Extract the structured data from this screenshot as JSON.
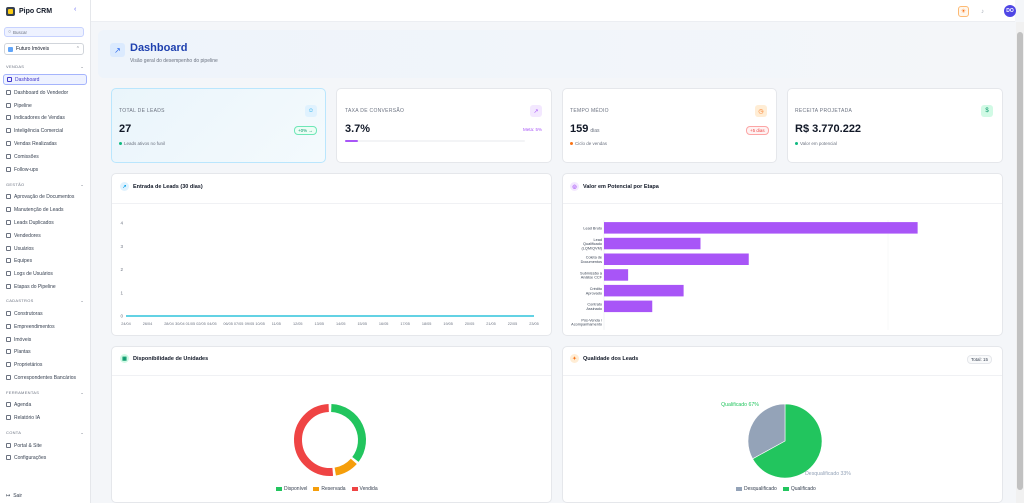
{
  "brand": "Pipo CRM",
  "search_placeholder": "Buscar",
  "company": "Futuro Imóveis",
  "sections": {
    "vendas": "VENDAS",
    "gestao": "GESTÃO",
    "cadastros": "CADASTROS",
    "ferramentas": "FERRAMENTAS",
    "conta": "CONTA"
  },
  "nav": {
    "vendas": [
      "Dashboard",
      "Dashboard do Vendedor",
      "Pipeline",
      "Indicadores de Vendas",
      "Inteligência Comercial",
      "Vendas Realizadas",
      "Comissões",
      "Follow-ups"
    ],
    "gestao": [
      "Aprovação de Documentos",
      "Manutenção de Leads",
      "Leads Duplicados",
      "Vendedores",
      "Usuários",
      "Equipes",
      "Logs de Usuários",
      "Etapas do Pipeline"
    ],
    "cadastros": [
      "Construtoras",
      "Empreendimentos",
      "Imóveis",
      "Plantas",
      "Proprietários",
      "Correspondentes Bancários"
    ],
    "ferramentas": [
      "Agenda",
      "Relatório IA"
    ],
    "conta": [
      "Portal & Site",
      "Configurações"
    ]
  },
  "logout": "Sair",
  "user_initials": "DO",
  "header": {
    "title": "Dashboard",
    "subtitle": "Visão geral do desempenho do pipeline"
  },
  "kpis": [
    {
      "label": "TOTAL DE LEADS",
      "value": "27",
      "unit": "",
      "badge": "+0% →",
      "note": "Leads ativos no funil",
      "color": "#10b981"
    },
    {
      "label": "TAXA DE CONVERSÃO",
      "value": "3.7%",
      "unit": "",
      "badge": "Meta: 5%",
      "note": "",
      "color": "#a855f7"
    },
    {
      "label": "TEMPO MÉDIO",
      "value": "159",
      "unit": "dias",
      "badge": "+5 dias",
      "note": "Ciclo de vendas",
      "color": "#f97316"
    },
    {
      "label": "RECEITA PROJETADA",
      "value": "R$ 3.770.222",
      "unit": "",
      "badge": "",
      "note": "Valor em potencial",
      "color": "#10b981"
    }
  ],
  "panels": {
    "leads_title": "Entrada de Leads (30 dias)",
    "pipeline_title": "Valor em Potencial por Etapa",
    "units_title": "Disponibilidade de Unidades",
    "quality_title": "Qualidade dos Leads",
    "quality_total": "Total: 15"
  },
  "chart_data": [
    {
      "type": "line",
      "title": "Entrada de Leads (30 dias)",
      "x": [
        "24/04",
        "26/04",
        "28/04",
        "30/04",
        "01/05",
        "02/05",
        "04/05",
        "06/05",
        "07/05",
        "09/05",
        "10/05",
        "11/05",
        "12/05",
        "13/05",
        "14/05",
        "15/05",
        "16/05",
        "17/05",
        "18/05",
        "19/05",
        "20/05",
        "21/05",
        "22/05",
        "23/05"
      ],
      "x_tick_labels": [
        "24/04",
        "26/04",
        "28/04",
        "30/04 01/05 02/05",
        "04/05",
        "06/05 07/05",
        "09/05 10/05",
        "11/05",
        "12/05",
        "13/05",
        "14/05",
        "15/05",
        "16/05",
        "17/05",
        "18/05",
        "19/05",
        "20/05",
        "21/05",
        "22/05",
        "23/05"
      ],
      "series": [
        {
          "values": [
            0,
            0,
            0,
            0,
            0,
            0,
            0,
            0,
            0,
            0,
            0,
            0,
            0,
            0,
            0,
            0,
            0,
            0,
            0,
            0,
            0,
            0,
            0,
            0
          ],
          "color": "#06b6d4"
        }
      ],
      "ylim": [
        0,
        4
      ],
      "yticks": [
        0,
        1,
        2,
        3,
        4
      ],
      "grid": false
    },
    {
      "type": "bar",
      "orientation": "horizontal",
      "title": "Valor em Potencial por Etapa",
      "categories": [
        "Lead Bruto",
        "Lead Qualificado (LQM/QVM)",
        "Coleta de Documentos",
        "Submissão à Análise CCF",
        "Crédito Aprovado",
        "Contrato Assinado",
        "Pós-Venda / Acompanhamento"
      ],
      "category_labels": [
        [
          "Lead Bruto"
        ],
        [
          "Lead",
          "Qualificado",
          "(LQM/QVM)"
        ],
        [
          "Coleta de",
          "Documentos"
        ],
        [
          "Submissão à",
          "Análise CCF"
        ],
        [
          "Crédito",
          "Aprovado"
        ],
        [
          "Contrato",
          "Assinado"
        ],
        [
          "Pós-Venda /",
          "Acompanhamento"
        ]
      ],
      "values": [
        1300000,
        400000,
        600000,
        100000,
        330000,
        200000,
        0
      ],
      "xlim": [
        0,
        1600000
      ],
      "color": "#a855f7"
    },
    {
      "type": "pie",
      "donut": true,
      "title": "Disponibilidade de Unidades",
      "labels": [
        "Disponível",
        "Reservada",
        "Vendida"
      ],
      "values": [
        36,
        12,
        52
      ],
      "colors": [
        "#22c55e",
        "#f59e0b",
        "#ef4444"
      ]
    },
    {
      "type": "pie",
      "title": "Qualidade dos Leads",
      "labels": [
        "Desqualificado",
        "Qualificado"
      ],
      "values": [
        33,
        67
      ],
      "slice_labels": [
        "Desqualificado 33%",
        "Qualificado 67%"
      ],
      "colors": [
        "#94a3b8",
        "#22c55e"
      ]
    }
  ]
}
